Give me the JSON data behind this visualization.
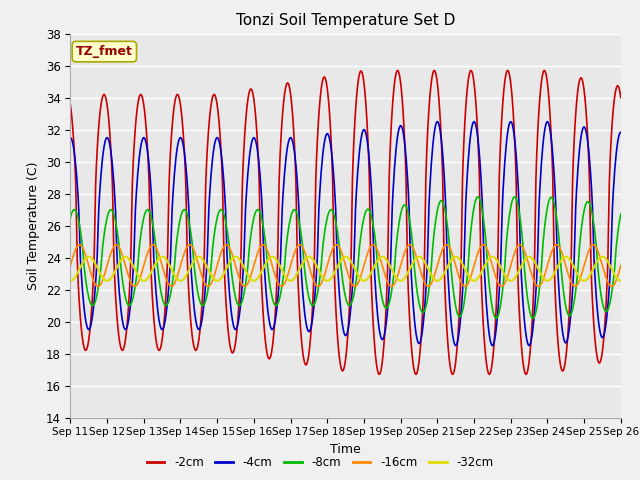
{
  "title": "Tonzi Soil Temperature Set D",
  "xlabel": "Time",
  "ylabel": "Soil Temperature (C)",
  "ylim": [
    14,
    38
  ],
  "x_labels": [
    "Sep 11",
    "Sep 12",
    "Sep 13",
    "Sep 14",
    "Sep 15",
    "Sep 16",
    "Sep 17",
    "Sep 18",
    "Sep 19",
    "Sep 20",
    "Sep 21",
    "Sep 22",
    "Sep 23",
    "Sep 24",
    "Sep 25",
    "Sep 26"
  ],
  "series": {
    "-2cm": {
      "color": "#cc0000",
      "lw": 1.2
    },
    "-4cm": {
      "color": "#0000cc",
      "lw": 1.2
    },
    "-8cm": {
      "color": "#00bb00",
      "lw": 1.2
    },
    "-16cm": {
      "color": "#ff8800",
      "lw": 1.2
    },
    "-32cm": {
      "color": "#dddd00",
      "lw": 1.5
    }
  },
  "legend_order": [
    "-2cm",
    "-4cm",
    "-8cm",
    "-16cm",
    "-32cm"
  ],
  "annotation_text": "TZ_fmet",
  "annotation_color": "#990000",
  "annotation_bg": "#ffffcc",
  "annotation_edge": "#aaaa00",
  "fig_bg": "#f0f0f0",
  "plot_bg": "#e8e8e8",
  "grid_color": "#ffffff",
  "yticks": [
    14,
    16,
    18,
    20,
    22,
    24,
    26,
    28,
    30,
    32,
    34,
    36,
    38
  ]
}
